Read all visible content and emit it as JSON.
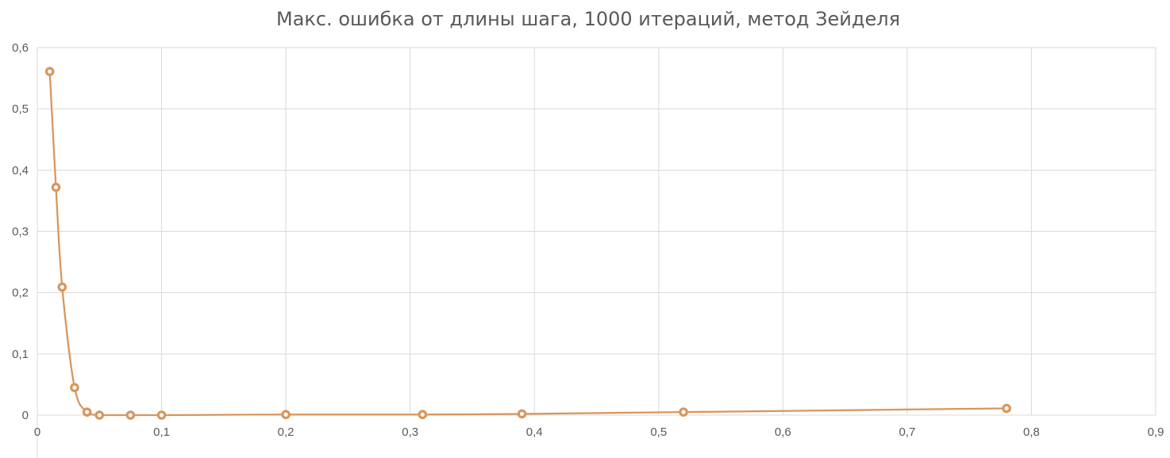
{
  "chart_data": {
    "type": "scatter",
    "title": "Макс. ошибка от длины шага, 1000 итераций, метод Зейделя",
    "xlabel": "",
    "ylabel": "",
    "xlim": [
      0,
      0.9
    ],
    "ylim": [
      0,
      0.6
    ],
    "x_ticks": [
      0,
      0.1,
      0.2,
      0.3,
      0.4,
      0.5,
      0.6,
      0.7,
      0.8,
      0.9
    ],
    "x_tick_labels": [
      "0",
      "0,1",
      "0,2",
      "0,3",
      "0,4",
      "0,5",
      "0,6",
      "0,7",
      "0,8",
      "0,9"
    ],
    "y_ticks": [
      0,
      0.1,
      0.2,
      0.3,
      0.4,
      0.5,
      0.6
    ],
    "y_tick_labels": [
      "0",
      "0,1",
      "0,2",
      "0,3",
      "0,4",
      "0,5",
      "0,6"
    ],
    "grid": true,
    "legend": "none",
    "smooth_lines": true,
    "series": [
      {
        "color": "#d9955c",
        "marker": "circle",
        "points": [
          {
            "x": 0.01,
            "y": 0.561
          },
          {
            "x": 0.015,
            "y": 0.372
          },
          {
            "x": 0.02,
            "y": 0.209
          },
          {
            "x": 0.03,
            "y": 0.045
          },
          {
            "x": 0.04,
            "y": 0.005
          },
          {
            "x": 0.05,
            "y": 0.0
          },
          {
            "x": 0.075,
            "y": 0.0
          },
          {
            "x": 0.1,
            "y": 0.0
          },
          {
            "x": 0.2,
            "y": 0.001
          },
          {
            "x": 0.31,
            "y": 0.001
          },
          {
            "x": 0.39,
            "y": 0.002
          },
          {
            "x": 0.52,
            "y": 0.005
          },
          {
            "x": 0.78,
            "y": 0.011
          }
        ]
      }
    ]
  }
}
